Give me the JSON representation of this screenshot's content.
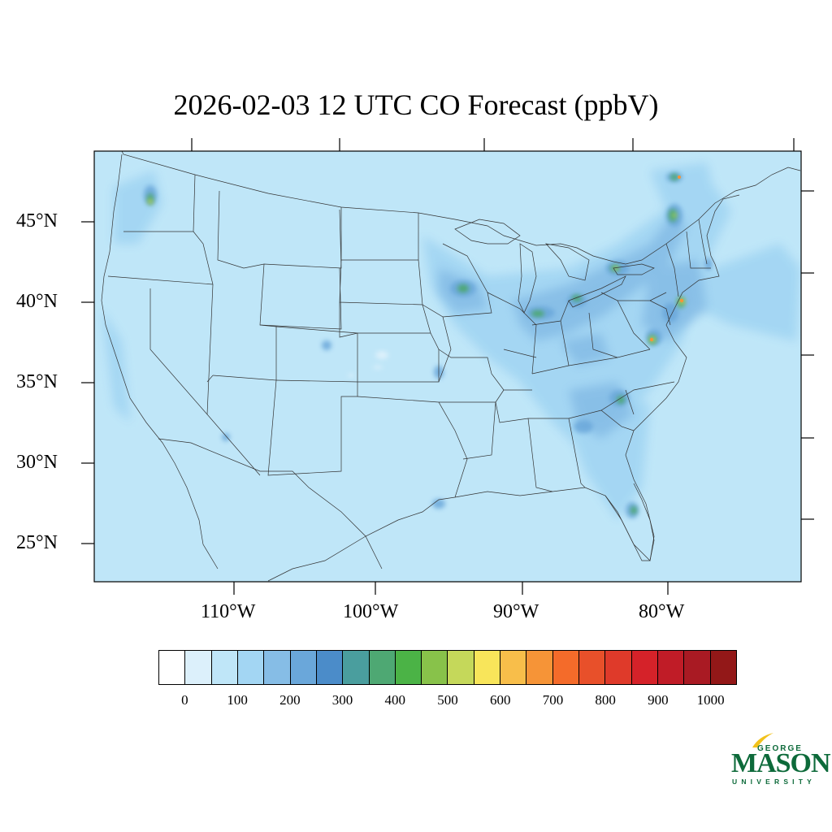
{
  "title": "2026-02-03 12 UTC CO Forecast (ppbV)",
  "lat_labels": [
    "45°N",
    "40°N",
    "35°N",
    "30°N",
    "25°N"
  ],
  "lon_labels": [
    "110°W",
    "100°W",
    "90°W",
    "80°W"
  ],
  "colorbar": {
    "colors": [
      "#ffffff",
      "#dcf0fb",
      "#bfe6f8",
      "#a3d6f3",
      "#86bde6",
      "#6aa7da",
      "#4b8cc9",
      "#4a9e9e",
      "#4ea873",
      "#4bb346",
      "#88c24a",
      "#c5d85a",
      "#f8e55a",
      "#f8be4a",
      "#f69437",
      "#f46b2a",
      "#e8502a",
      "#df3a2a",
      "#d52229",
      "#c01c27",
      "#a91a23",
      "#931818"
    ],
    "labels": [
      "0",
      "100",
      "200",
      "300",
      "400",
      "500",
      "600",
      "700",
      "800",
      "900",
      "1000"
    ]
  },
  "logo": {
    "line1": "GEORGE",
    "line2": "MASON",
    "line3": "UNIVERSITY"
  }
}
